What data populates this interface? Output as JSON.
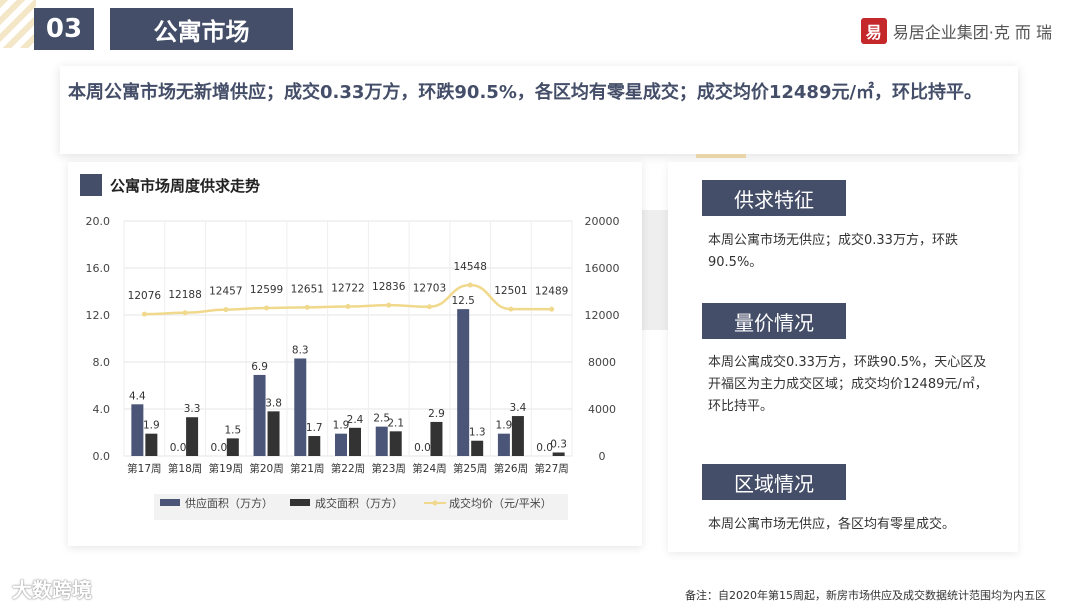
{
  "header": {
    "section_number": "03",
    "section_title": "公寓市场",
    "brand_logo_char": "易",
    "brand_text": "易居企业集团·克 而 瑞"
  },
  "summary": "本周公寓市场无新增供应；成交0.33万方，环跌90.5%，各区均有零星成交；成交均价12489元/㎡，环比持平。",
  "chart_title": "公寓市场周度供求走势",
  "chart_data": {
    "type": "bar",
    "categories": [
      "第17周",
      "第18周",
      "第19周",
      "第20周",
      "第21周",
      "第22周",
      "第23周",
      "第24周",
      "第25周",
      "第26周",
      "第27周"
    ],
    "series": [
      {
        "name": "供应面积（万方）",
        "type": "bar",
        "axis": "left",
        "color": "#4a5578",
        "values": [
          4.4,
          0.0,
          0.0,
          6.9,
          8.3,
          1.9,
          2.5,
          0.0,
          12.5,
          1.9,
          0.0
        ]
      },
      {
        "name": "成交面积（万方）",
        "type": "bar",
        "axis": "left",
        "color": "#333333",
        "values": [
          1.9,
          3.3,
          1.5,
          3.8,
          1.7,
          2.4,
          2.1,
          2.9,
          1.3,
          3.4,
          0.3
        ]
      },
      {
        "name": "成交均价（元/平米）",
        "type": "line",
        "axis": "right",
        "color": "#f0d98c",
        "values": [
          12076,
          12188,
          12457,
          12599,
          12651,
          12722,
          12836,
          12703,
          14548,
          12501,
          12489
        ]
      }
    ],
    "y_left": {
      "min": 0,
      "max": 20,
      "ticks": [
        "0.0",
        "4.0",
        "8.0",
        "12.0",
        "16.0",
        "20.0"
      ]
    },
    "y_right": {
      "min": 0,
      "max": 20000,
      "ticks": [
        "0",
        "4000",
        "8000",
        "12000",
        "16000",
        "20000"
      ]
    },
    "grid": true,
    "legend_position": "bottom"
  },
  "panel": {
    "sections": [
      {
        "title": "供求特征",
        "text": "本周公寓市场无供应；成交0.33万方，环跌90.5%。"
      },
      {
        "title": "量价情况",
        "text": "本周公寓成交0.33万方，环跌90.5%，天心区及开福区为主力成交区域；成交均价12489元/㎡，环比持平。"
      },
      {
        "title": "区域情况",
        "text": "本周公寓市场无供应，各区均有零星成交。"
      }
    ]
  },
  "watermark": "大数跨境",
  "footnote": "备注：自2020年第15周起，新房市场供应及成交数据统计范围均为内五区"
}
